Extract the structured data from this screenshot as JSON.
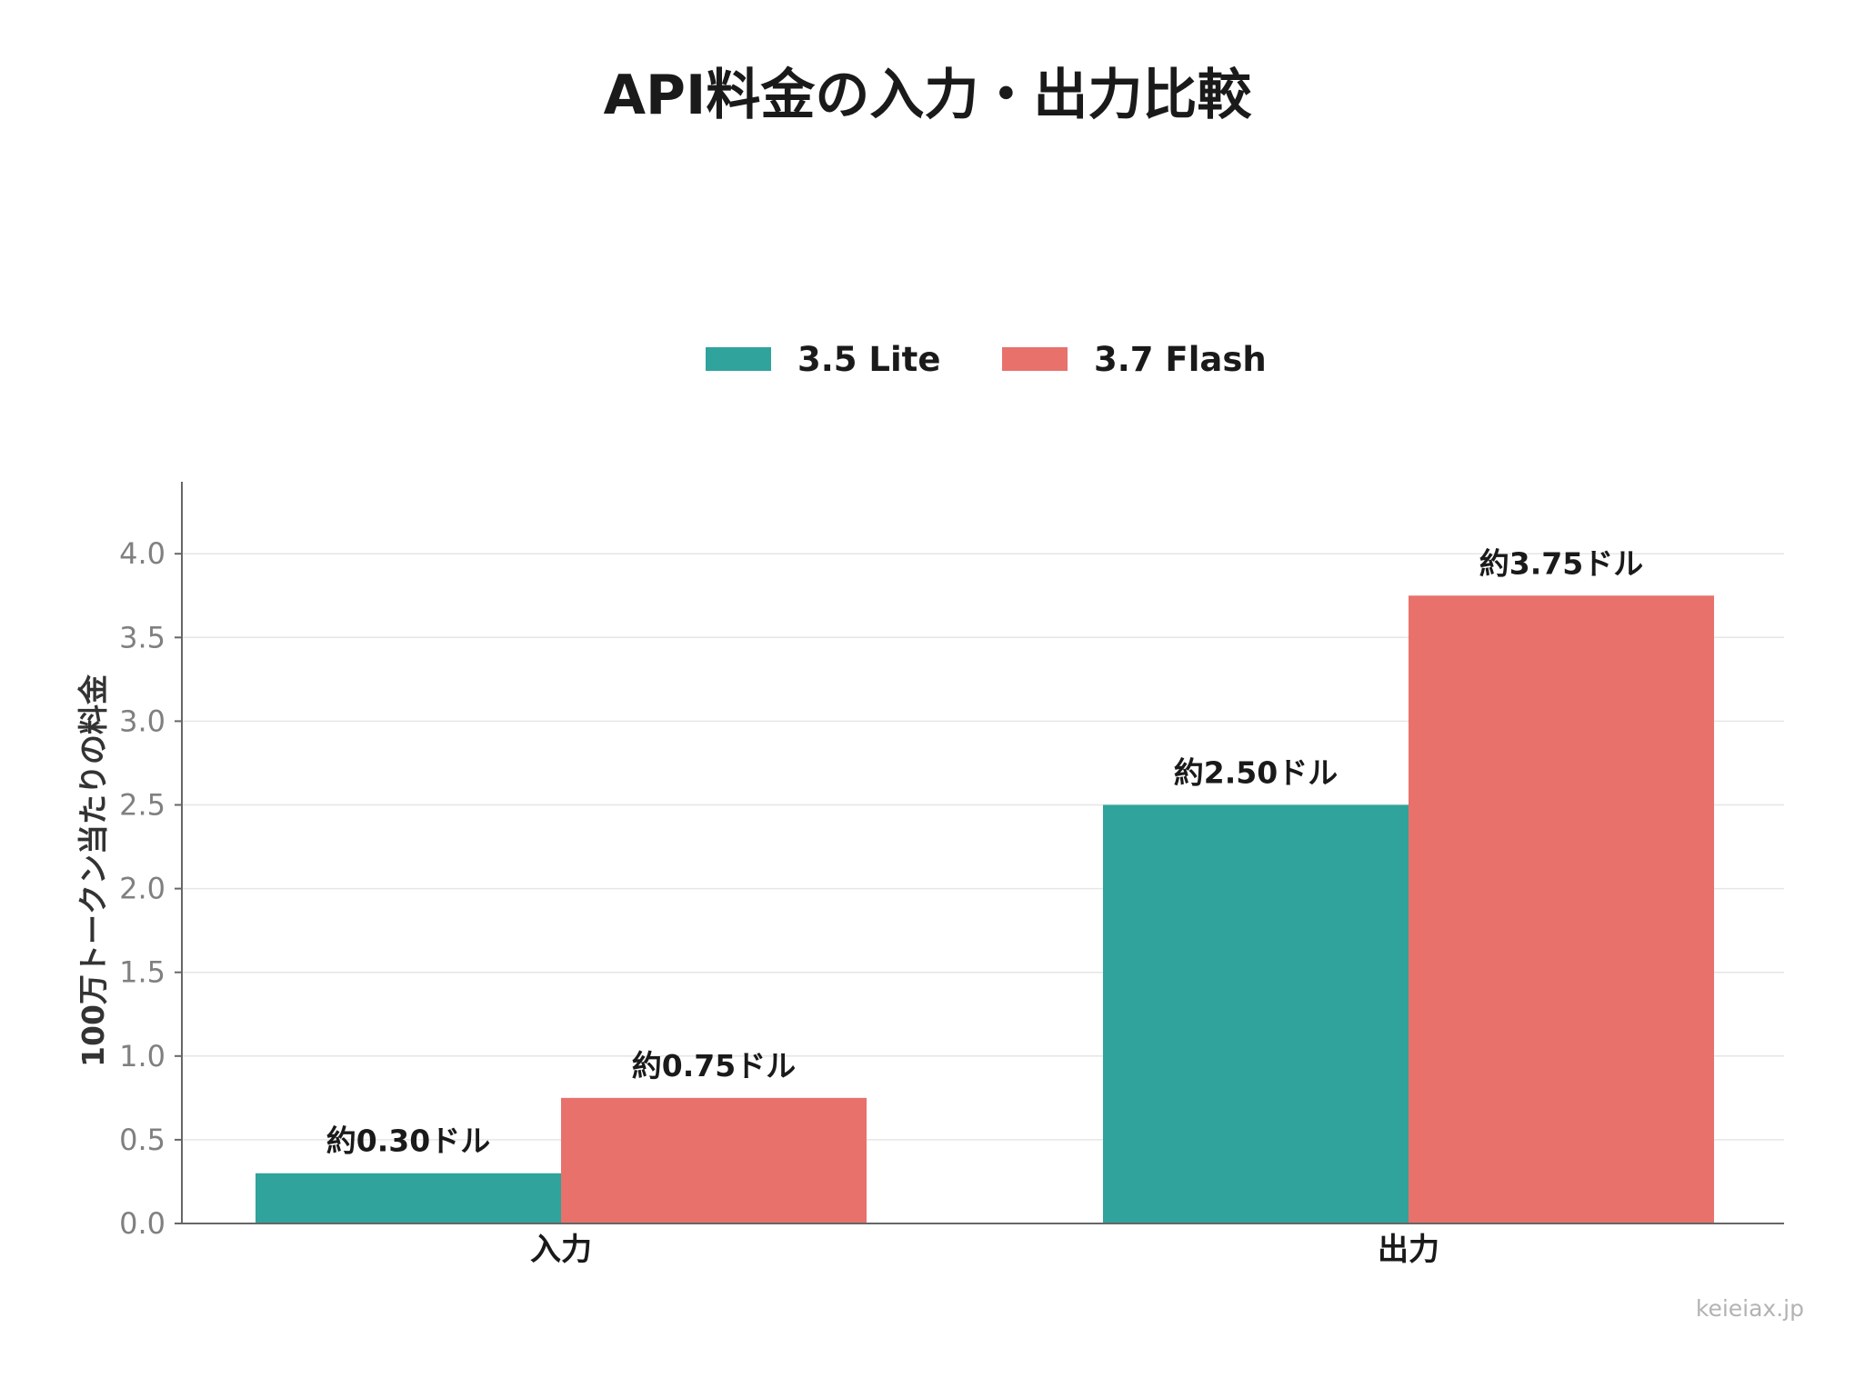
{
  "chart_data": {
    "type": "bar",
    "title": "API料金の入力・出力比較",
    "ylabel": "100万トークン当たりの料金",
    "xlabel": "",
    "categories": [
      "入力",
      "出力"
    ],
    "series": [
      {
        "name": "3.5 Lite",
        "color": "#2fa39c",
        "values": [
          0.3,
          2.5
        ],
        "labels": [
          "約0.30ドル",
          "約2.50ドル"
        ]
      },
      {
        "name": "3.7 Flash",
        "color": "#e8716c",
        "values": [
          0.75,
          3.75
        ],
        "labels": [
          "約0.75ドル",
          "約3.75ドル"
        ]
      }
    ],
    "ylim": [
      0,
      4.43
    ],
    "yticks": [
      "0.0",
      "0.5",
      "1.0",
      "1.5",
      "2.0",
      "2.5",
      "3.0",
      "3.5",
      "4.0"
    ],
    "ytick_values": [
      0,
      0.5,
      1.0,
      1.5,
      2.0,
      2.5,
      3.0,
      3.5,
      4.0
    ],
    "grid": true,
    "legend_position": "top-center"
  },
  "watermark": "keieiax.jp"
}
